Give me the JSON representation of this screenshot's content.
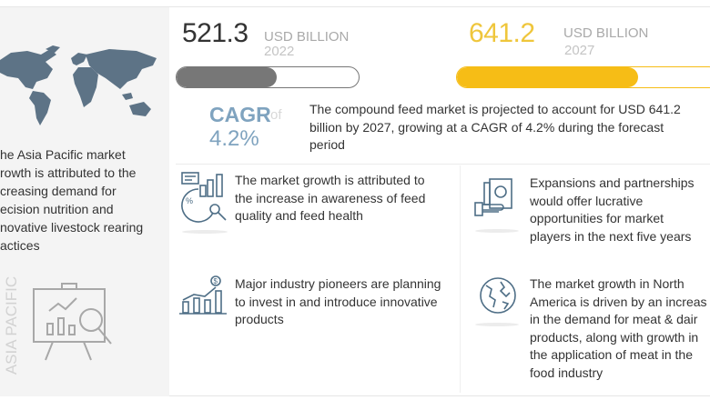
{
  "left_panel": {
    "region_label": "ASIA PACIFIC",
    "text_lines": [
      "he Asia Pacific market",
      "rowth is attributed to the",
      "creasing demand for",
      "ecision nutrition and",
      "novative livestock rearing",
      "actices"
    ],
    "icons": [
      "world-map",
      "presentation-analytics"
    ]
  },
  "stats": {
    "start": {
      "value": "521.3",
      "unit": "USD BILLION",
      "year": "2022",
      "bar_fill_percent": 55,
      "color": "#777777"
    },
    "end": {
      "value": "641.2",
      "unit": "USD BILLION",
      "year": "2027",
      "bar_fill_percent": 69,
      "color": "#f6bd16"
    },
    "value_color_end": "#efc63c"
  },
  "cagr": {
    "label": "CAGR",
    "of": "of",
    "value": "4.2%",
    "color": "#7fa3bf"
  },
  "summary_lines": [
    "The compound feed market is projected to account for USD 641.2",
    "billion by 2027, growing at a CAGR of 4.2% during the forecast",
    "period"
  ],
  "insights": [
    {
      "icon": "analytics-icon",
      "lines": [
        "The market growth is attributed to",
        "the increase in awareness of feed",
        "quality and feed health"
      ]
    },
    {
      "icon": "money-hand-icon",
      "lines": [
        "Expansions and partnerships",
        "would offer lucrative",
        "opportunities for market",
        "players in the next five years"
      ]
    },
    {
      "icon": "growth-chart-dollar-icon",
      "lines": [
        "Major industry pioneers are planning",
        "to invest in and introduce innovative",
        "products"
      ]
    },
    {
      "icon": "globe-icon",
      "lines": [
        "The market growth in North",
        "America is driven by an increas",
        "in the demand for meat & dair",
        "products, along with growth in",
        "the application of meat in the",
        "food industry"
      ]
    }
  ]
}
